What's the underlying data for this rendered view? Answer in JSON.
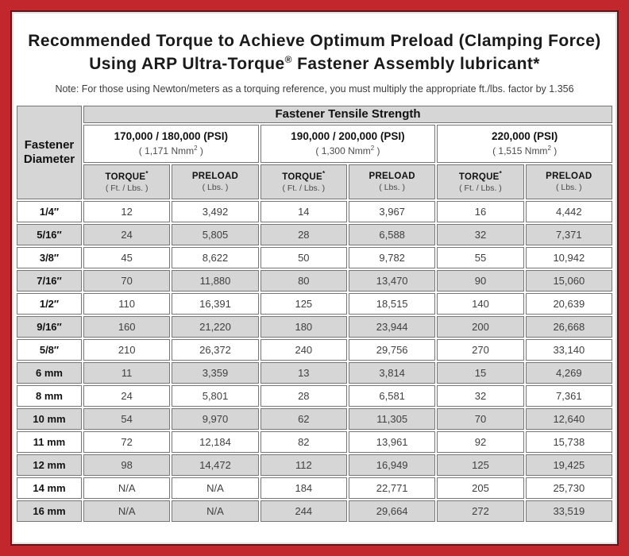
{
  "title": {
    "line1": "Recommended Torque to Achieve Optimum Preload (Clamping Force)",
    "line2_prefix": "Using ARP Ultra-Torque",
    "line2_sup": "®",
    "line2_suffix": " Fastener Assembly lubricant*"
  },
  "note": "Note: For those using Newton/meters as a torquing reference, you must multiply the appropriate ft./lbs. factor by 1.356",
  "table": {
    "corner_line1": "Fastener",
    "corner_line2": "Diameter",
    "group_header": "Fastener Tensile Strength",
    "strength_groups": [
      {
        "psi": "170,000 / 180,000 (PSI)",
        "nmm_prefix": "( 1,171 Nmm",
        "nmm_sup": "2",
        "nmm_suffix": " )"
      },
      {
        "psi": "190,000 / 200,000 (PSI)",
        "nmm_prefix": "( 1,300 Nmm",
        "nmm_sup": "2",
        "nmm_suffix": " )"
      },
      {
        "psi": "220,000 (PSI)",
        "nmm_prefix": "( 1,515 Nmm",
        "nmm_sup": "2",
        "nmm_suffix": " )"
      }
    ],
    "sub_headers": {
      "torque_label": "TORQUE",
      "torque_sup": "*",
      "torque_unit": "( Ft. / Lbs. )",
      "preload_label": "PRELOAD",
      "preload_unit": "( Lbs. )"
    },
    "rows": [
      {
        "diameter": "1/4″",
        "values": [
          "12",
          "3,492",
          "14",
          "3,967",
          "16",
          "4,442"
        ]
      },
      {
        "diameter": "5/16″",
        "values": [
          "24",
          "5,805",
          "28",
          "6,588",
          "32",
          "7,371"
        ]
      },
      {
        "diameter": "3/8″",
        "values": [
          "45",
          "8,622",
          "50",
          "9,782",
          "55",
          "10,942"
        ]
      },
      {
        "diameter": "7/16″",
        "values": [
          "70",
          "11,880",
          "80",
          "13,470",
          "90",
          "15,060"
        ]
      },
      {
        "diameter": "1/2″",
        "values": [
          "110",
          "16,391",
          "125",
          "18,515",
          "140",
          "20,639"
        ]
      },
      {
        "diameter": "9/16″",
        "values": [
          "160",
          "21,220",
          "180",
          "23,944",
          "200",
          "26,668"
        ]
      },
      {
        "diameter": "5/8″",
        "values": [
          "210",
          "26,372",
          "240",
          "29,756",
          "270",
          "33,140"
        ]
      },
      {
        "diameter": "6 mm",
        "values": [
          "11",
          "3,359",
          "13",
          "3,814",
          "15",
          "4,269"
        ]
      },
      {
        "diameter": "8 mm",
        "values": [
          "24",
          "5,801",
          "28",
          "6,581",
          "32",
          "7,361"
        ]
      },
      {
        "diameter": "10 mm",
        "values": [
          "54",
          "9,970",
          "62",
          "11,305",
          "70",
          "12,640"
        ]
      },
      {
        "diameter": "11 mm",
        "values": [
          "72",
          "12,184",
          "82",
          "13,961",
          "92",
          "15,738"
        ]
      },
      {
        "diameter": "12 mm",
        "values": [
          "98",
          "14,472",
          "112",
          "16,949",
          "125",
          "19,425"
        ]
      },
      {
        "diameter": "14 mm",
        "values": [
          "N/A",
          "N/A",
          "184",
          "22,771",
          "205",
          "25,730"
        ]
      },
      {
        "diameter": "16 mm",
        "values": [
          "N/A",
          "N/A",
          "244",
          "29,664",
          "272",
          "33,519"
        ]
      }
    ]
  },
  "colors": {
    "frame_red": "#c1272d",
    "frame_dark_line": "#5e1418",
    "frame_light_line": "#e2e0e0",
    "cell_shaded": "#d6d6d6",
    "cell_border": "#767676",
    "value_text": "#3f3f3f"
  }
}
